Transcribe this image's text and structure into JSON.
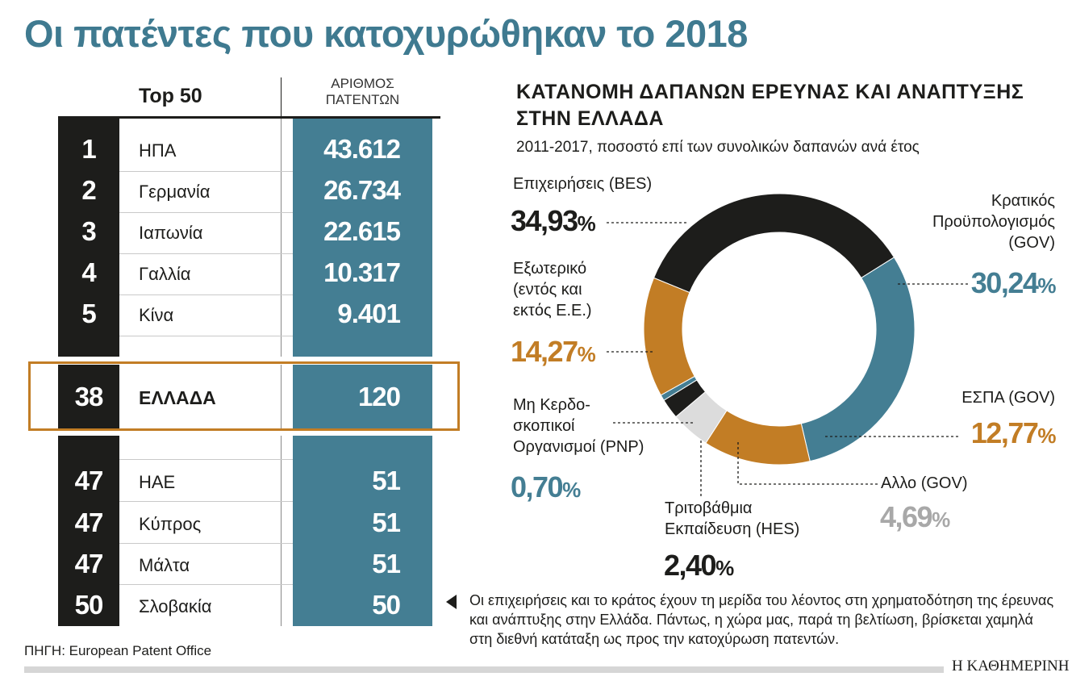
{
  "title": "Οι πατέντες που κατοχυρώθηκαν το 2018",
  "table": {
    "header_left": "Top 50",
    "header_right_line1": "ΑΡΙΘΜΟΣ",
    "header_right_line2": "ΠΑΤΕΝΤΩΝ",
    "rows": [
      {
        "rank": "1",
        "country": "ΗΠΑ",
        "value": "43.612"
      },
      {
        "rank": "2",
        "country": "Γερμανία",
        "value": "26.734"
      },
      {
        "rank": "3",
        "country": "Ιαπωνία",
        "value": "22.615"
      },
      {
        "rank": "4",
        "country": "Γαλλία",
        "value": "10.317"
      },
      {
        "rank": "5",
        "country": "Κίνα",
        "value": "9.401"
      },
      {
        "rank": "38",
        "country": "ΕΛΛΑΔΑ",
        "value": "120"
      },
      {
        "rank": "47",
        "country": "ΗΑΕ",
        "value": "51"
      },
      {
        "rank": "47",
        "country": "Κύπρος",
        "value": "51"
      },
      {
        "rank": "47",
        "country": "Μάλτα",
        "value": "51"
      },
      {
        "rank": "50",
        "country": "Σλοβακία",
        "value": "50"
      }
    ],
    "source": "ΠΗΓΗ: European Patent Office"
  },
  "brand": "Η ΚΑΘΗΜΕΡΙΝΗ",
  "chart_data": {
    "type": "pie",
    "style": "donut",
    "title": "ΚΑΤΑΝΟΜΗ ΔΑΠΑΝΩΝ ΕΡΕΥΝΑΣ ΚΑΙ ΑΝΑΠΤΥΞΗΣ ΣΤΗΝ ΕΛΛΑΔΑ",
    "subtitle": "2011-2017, ποσοστό επί των συνολικών δαπανών ανά έτος",
    "slices": [
      {
        "label": "Επιχειρήσεις (BES)",
        "pct_text": "34,93",
        "value": 34.93,
        "color": "#1d1d1b",
        "text_color": "#1d1d1b"
      },
      {
        "label": "Κρατικός Προϋπολογισμός (GOV)",
        "pct_text": "30,24",
        "value": 30.24,
        "color": "#447e93",
        "text_color": "#447e93"
      },
      {
        "label": "ΕΣΠΑ (GOV)",
        "pct_text": "12,77",
        "value": 12.77,
        "color": "#c27d25",
        "text_color": "#c27d25"
      },
      {
        "label": "Αλλο (GOV)",
        "pct_text": "4,69",
        "value": 4.69,
        "color": "#dcdcdc",
        "text_color": "#a8a8a8"
      },
      {
        "label": "Τριτοβάθμια Εκπαίδευση (HES)",
        "pct_text": "2,40",
        "value": 2.4,
        "color": "#1d1d1b",
        "text_color": "#1d1d1b"
      },
      {
        "label": "Μη Κερδοσκοπικοί Οργανισμοί (PNP)",
        "pct_text": "0,70",
        "value": 0.7,
        "color": "#447e93",
        "text_color": "#447e93"
      },
      {
        "label": "Εξωτερικό (εντός και εκτός Ε.Ε.)",
        "pct_text": "14,27",
        "value": 14.27,
        "color": "#c27d25",
        "text_color": "#c27d25"
      }
    ],
    "label_lines": {
      "bes": [
        "Επιχειρήσεις (BES)"
      ],
      "gov": [
        "Κρατικός",
        "Προϋπολογισμός",
        "(GOV)"
      ],
      "espa": [
        "ΕΣΠΑ (GOV)"
      ],
      "other": [
        "Αλλο (GOV)"
      ],
      "hes": [
        "Τριτοβάθμια",
        "Εκπαίδευση (HES)"
      ],
      "pnp": [
        "Μη Κερδο-",
        "σκοπικοί",
        "Οργανισμοί (PNP)"
      ],
      "ext": [
        "Εξωτερικό",
        "(εντός και",
        "εκτός Ε.Ε.)"
      ]
    },
    "pct_symbol": "%",
    "note": "Οι επιχειρήσεις και το κράτος έχουν τη μερίδα του λέοντος στη χρηματοδότηση της έρευνας και ανάπτυξης στην Ελλάδα. Πάντως, η χώρα μας, παρά τη βελτίωση, βρίσκεται χαμηλά στη διεθνή κατάταξη ως προς την κατοχύρωση πατεντών."
  }
}
